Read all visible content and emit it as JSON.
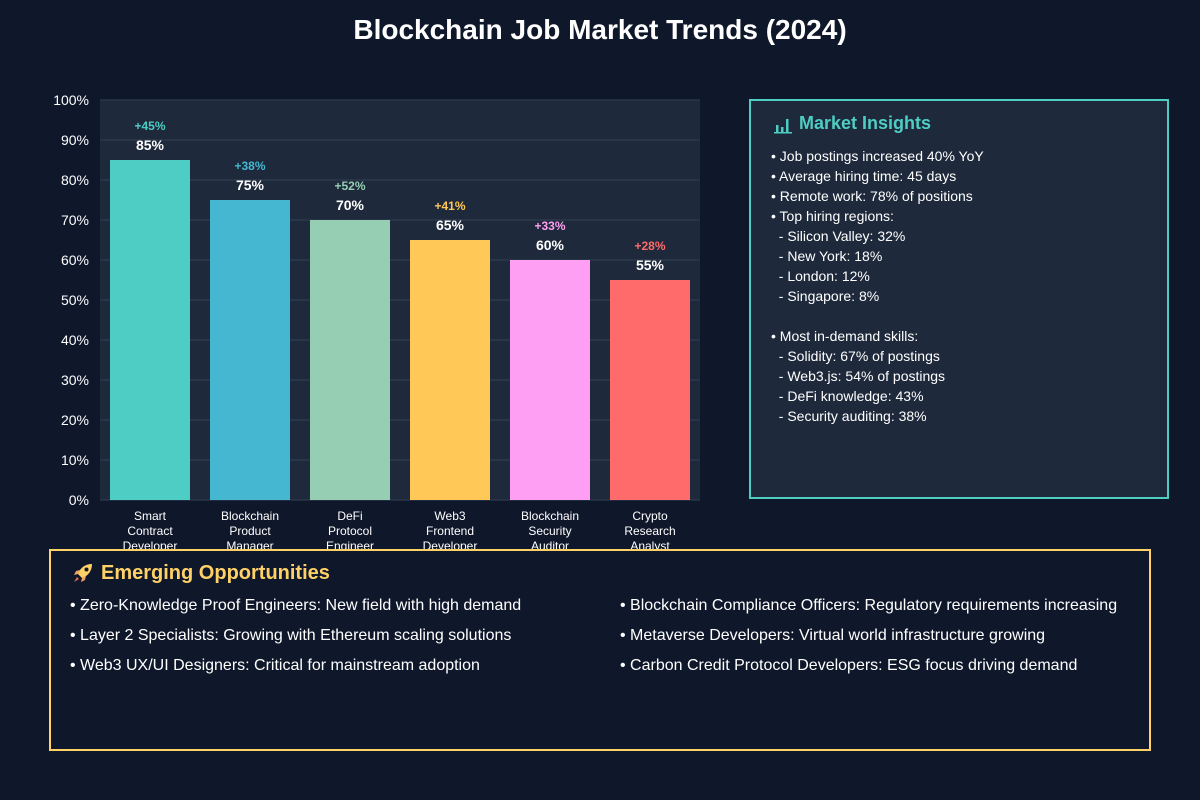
{
  "page_title": "Blockchain Job Market Trends (2024)",
  "chart_data": {
    "type": "bar",
    "title": "Blockchain Job Market Trends (2024)",
    "categories": [
      [
        "Smart",
        "Contract",
        "Developer"
      ],
      [
        "Blockchain",
        "Product",
        "Manager"
      ],
      [
        "DeFi",
        "Protocol",
        "Engineer"
      ],
      [
        "Web3",
        "Frontend",
        "Developer"
      ],
      [
        "Blockchain",
        "Security",
        "Auditor"
      ],
      [
        "Crypto",
        "Research",
        "Analyst"
      ]
    ],
    "values": [
      85,
      75,
      70,
      65,
      60,
      55
    ],
    "value_labels": [
      "85%",
      "75%",
      "70%",
      "65%",
      "60%",
      "55%"
    ],
    "growth_labels": [
      "+45%",
      "+38%",
      "+52%",
      "+41%",
      "+33%",
      "+28%"
    ],
    "colors": [
      "#4ecdc4",
      "#45b7d1",
      "#96ceb4",
      "#ffc857",
      "#ff9ff3",
      "#ff6b6b"
    ],
    "ylim": [
      0,
      100
    ],
    "yticks": [
      0,
      10,
      20,
      30,
      40,
      50,
      60,
      70,
      80,
      90,
      100
    ],
    "ytick_labels": [
      "0%",
      "10%",
      "20%",
      "30%",
      "40%",
      "50%",
      "60%",
      "70%",
      "80%",
      "90%",
      "100%"
    ],
    "grid": true,
    "xlabel": "",
    "ylabel": ""
  },
  "insights": {
    "icon": "bar-chart-icon",
    "title": "Market Insights",
    "accent": "#4ecdc4",
    "lines": [
      "• Job postings increased 40% YoY",
      "• Average hiring time: 45 days",
      "• Remote work: 78% of positions",
      "• Top hiring regions:",
      "  - Silicon Valley: 32%",
      "  - New York: 18%",
      "  - London: 12%",
      "  - Singapore: 8%",
      "",
      "• Most in-demand skills:",
      "  - Solidity: 67% of postings",
      "  - Web3.js: 54% of postings",
      "  - DeFi knowledge: 43%",
      "  - Security auditing: 38%"
    ]
  },
  "emerging": {
    "icon": "rocket-icon",
    "title": "Emerging Opportunities",
    "accent": "#ffd166",
    "left": [
      "• Zero-Knowledge Proof Engineers: New field with high demand",
      "• Layer 2 Specialists: Growing with Ethereum scaling solutions",
      "• Web3 UX/UI Designers: Critical for mainstream adoption"
    ],
    "right": [
      "• Blockchain Compliance Officers: Regulatory requirements increasing",
      "• Metaverse Developers: Virtual world infrastructure growing",
      "• Carbon Credit Protocol Developers: ESG focus driving demand"
    ]
  }
}
